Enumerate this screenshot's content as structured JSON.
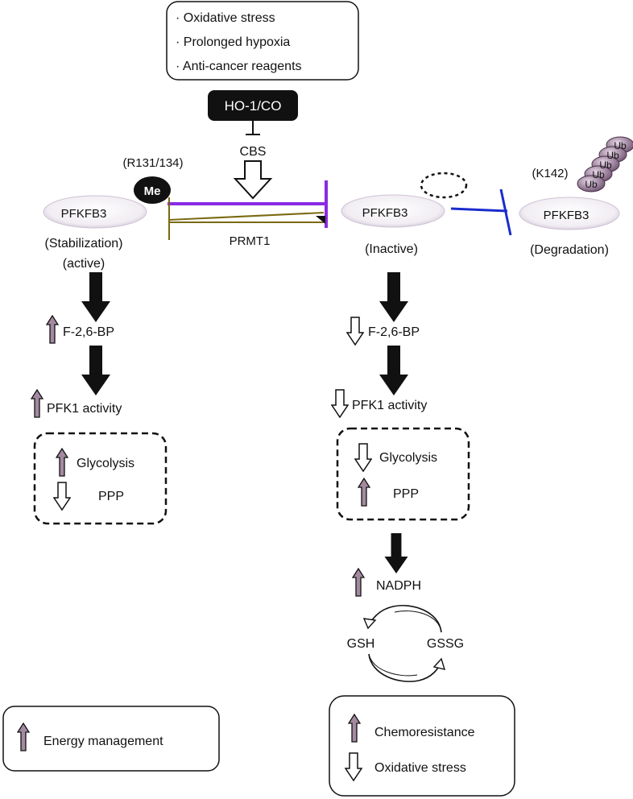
{
  "stress_box": {
    "items": [
      "· Oxidative stress",
      "· Prolonged hypoxia",
      "· Anti-cancer reagents"
    ]
  },
  "regulators": {
    "ho1_co": "HO-1/CO",
    "cbs": "CBS",
    "prmt1": "PRMT1"
  },
  "left": {
    "site": "(R131/134)",
    "methyl": "Me",
    "protein": "PFKFB3",
    "state_1": "(Stabilization)",
    "state_2": "(active)",
    "f26bp": "F-2,6-BP",
    "pfk1": "PFK1 activity",
    "glycolysis": "Glycolysis",
    "ppp": "PPP",
    "outcome": "Energy management"
  },
  "middle": {
    "protein": "PFKFB3",
    "state": "(Inactive)",
    "f26bp": "F-2,6-BP",
    "pfk1": "PFK1 activity",
    "glycolysis": "Glycolysis",
    "ppp": "PPP",
    "nadph": "NADPH",
    "gsh": "GSH",
    "gssg": "GSSG",
    "outcome_1": "Chemoresistance",
    "outcome_2": "Oxidative stress"
  },
  "right": {
    "site": "(K142)",
    "ubiquitin": "Ub",
    "protein": "PFKFB3",
    "state": "(Degradation)"
  },
  "colors": {
    "up_arrow": "#a48aa0",
    "purple_line": "#8a2be2",
    "olive_line": "#7a6a12",
    "blue_line": "#1a2ccc",
    "ellipse_fill": "#ece7f0"
  }
}
